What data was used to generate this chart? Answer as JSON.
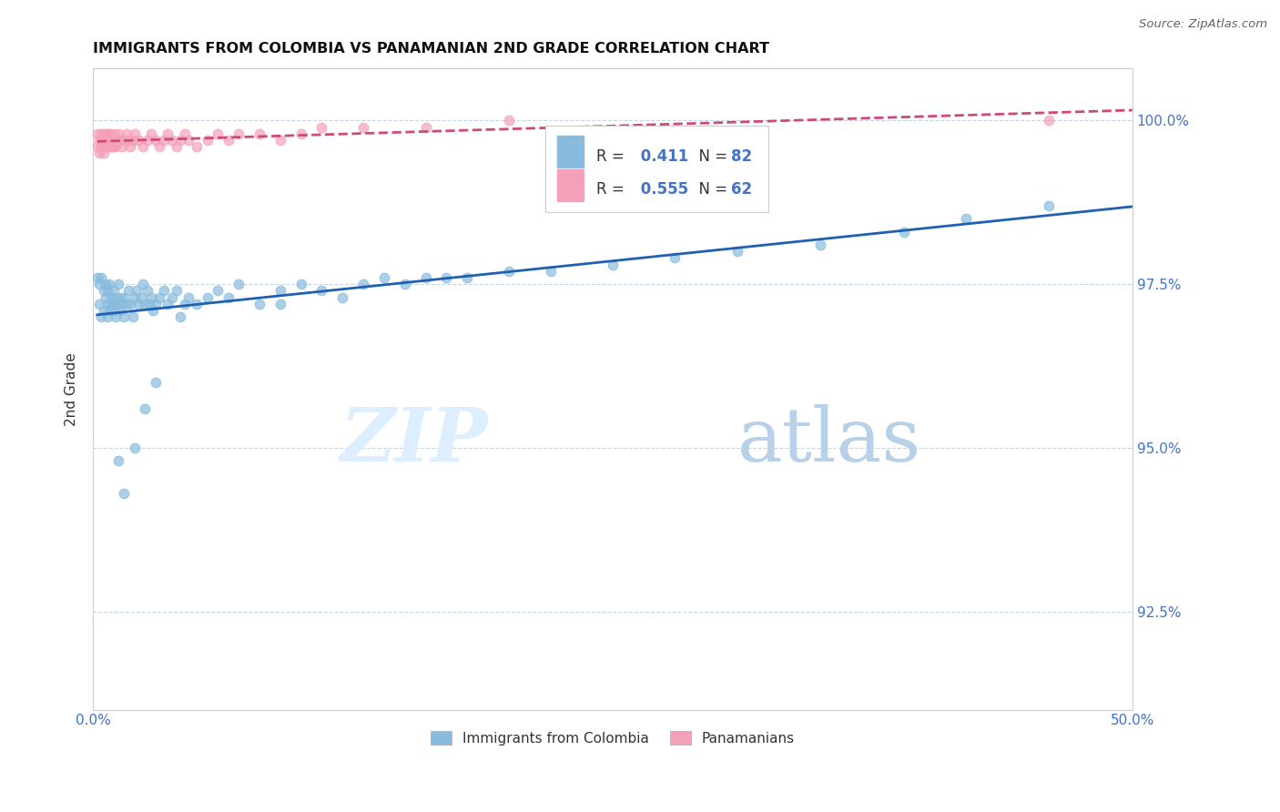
{
  "title": "IMMIGRANTS FROM COLOMBIA VS PANAMANIAN 2ND GRADE CORRELATION CHART",
  "source": "Source: ZipAtlas.com",
  "ylabel": "2nd Grade",
  "xlim": [
    0.0,
    0.5
  ],
  "ylim": [
    0.91,
    1.008
  ],
  "xticks": [
    0.0,
    0.1,
    0.2,
    0.3,
    0.4,
    0.5
  ],
  "xticklabels": [
    "0.0%",
    "",
    "",
    "",
    "",
    "50.0%"
  ],
  "yticks": [
    0.925,
    0.95,
    0.975,
    1.0
  ],
  "yticklabels": [
    "92.5%",
    "95.0%",
    "97.5%",
    "100.0%"
  ],
  "watermark_zip": "ZIP",
  "watermark_atlas": "atlas",
  "legend_labels": [
    "Immigrants from Colombia",
    "Panamanians"
  ],
  "colombia_R": 0.411,
  "colombia_N": 82,
  "panama_R": 0.555,
  "panama_N": 62,
  "colombia_color": "#88bbdd",
  "panama_color": "#f4a0b8",
  "colombia_line_color": "#2060b0",
  "panama_line_color": "#d04878",
  "colombia_scatter_x": [
    0.002,
    0.003,
    0.003,
    0.004,
    0.004,
    0.005,
    0.005,
    0.006,
    0.006,
    0.007,
    0.007,
    0.007,
    0.008,
    0.008,
    0.009,
    0.009,
    0.01,
    0.01,
    0.01,
    0.011,
    0.011,
    0.012,
    0.012,
    0.013,
    0.013,
    0.014,
    0.015,
    0.015,
    0.016,
    0.017,
    0.018,
    0.019,
    0.02,
    0.021,
    0.022,
    0.023,
    0.024,
    0.025,
    0.026,
    0.027,
    0.028,
    0.029,
    0.03,
    0.032,
    0.034,
    0.036,
    0.038,
    0.04,
    0.042,
    0.044,
    0.046,
    0.05,
    0.055,
    0.06,
    0.065,
    0.07,
    0.08,
    0.09,
    0.1,
    0.11,
    0.12,
    0.13,
    0.14,
    0.15,
    0.16,
    0.17,
    0.18,
    0.2,
    0.22,
    0.25,
    0.28,
    0.31,
    0.35,
    0.39,
    0.42,
    0.46,
    0.012,
    0.015,
    0.02,
    0.025,
    0.03,
    0.09
  ],
  "colombia_scatter_y": [
    0.976,
    0.972,
    0.975,
    0.97,
    0.976,
    0.971,
    0.974,
    0.973,
    0.975,
    0.97,
    0.972,
    0.974,
    0.971,
    0.975,
    0.972,
    0.973,
    0.971,
    0.972,
    0.974,
    0.97,
    0.973,
    0.972,
    0.975,
    0.971,
    0.973,
    0.972,
    0.97,
    0.973,
    0.972,
    0.974,
    0.972,
    0.97,
    0.973,
    0.974,
    0.972,
    0.973,
    0.975,
    0.972,
    0.974,
    0.972,
    0.973,
    0.971,
    0.972,
    0.973,
    0.974,
    0.972,
    0.973,
    0.974,
    0.97,
    0.972,
    0.973,
    0.972,
    0.973,
    0.974,
    0.973,
    0.975,
    0.972,
    0.974,
    0.975,
    0.974,
    0.973,
    0.975,
    0.976,
    0.975,
    0.976,
    0.976,
    0.976,
    0.977,
    0.977,
    0.978,
    0.979,
    0.98,
    0.981,
    0.983,
    0.985,
    0.987,
    0.948,
    0.943,
    0.95,
    0.956,
    0.96,
    0.972
  ],
  "panama_scatter_x": [
    0.002,
    0.002,
    0.003,
    0.003,
    0.004,
    0.004,
    0.004,
    0.005,
    0.005,
    0.005,
    0.006,
    0.006,
    0.006,
    0.007,
    0.007,
    0.007,
    0.008,
    0.008,
    0.008,
    0.009,
    0.009,
    0.01,
    0.01,
    0.01,
    0.011,
    0.011,
    0.012,
    0.012,
    0.013,
    0.014,
    0.015,
    0.016,
    0.017,
    0.018,
    0.019,
    0.02,
    0.022,
    0.024,
    0.026,
    0.028,
    0.03,
    0.032,
    0.034,
    0.036,
    0.038,
    0.04,
    0.042,
    0.044,
    0.046,
    0.05,
    0.055,
    0.06,
    0.065,
    0.07,
    0.08,
    0.09,
    0.1,
    0.11,
    0.13,
    0.16,
    0.2,
    0.46
  ],
  "panama_scatter_y": [
    0.996,
    0.998,
    0.995,
    0.997,
    0.996,
    0.998,
    0.996,
    0.995,
    0.997,
    0.998,
    0.996,
    0.997,
    0.998,
    0.996,
    0.997,
    0.998,
    0.996,
    0.997,
    0.998,
    0.996,
    0.997,
    0.996,
    0.997,
    0.998,
    0.997,
    0.996,
    0.997,
    0.998,
    0.997,
    0.996,
    0.997,
    0.998,
    0.997,
    0.996,
    0.997,
    0.998,
    0.997,
    0.996,
    0.997,
    0.998,
    0.997,
    0.996,
    0.997,
    0.998,
    0.997,
    0.996,
    0.997,
    0.998,
    0.997,
    0.996,
    0.997,
    0.998,
    0.997,
    0.998,
    0.998,
    0.997,
    0.998,
    0.999,
    0.999,
    0.999,
    1.0,
    1.0
  ]
}
